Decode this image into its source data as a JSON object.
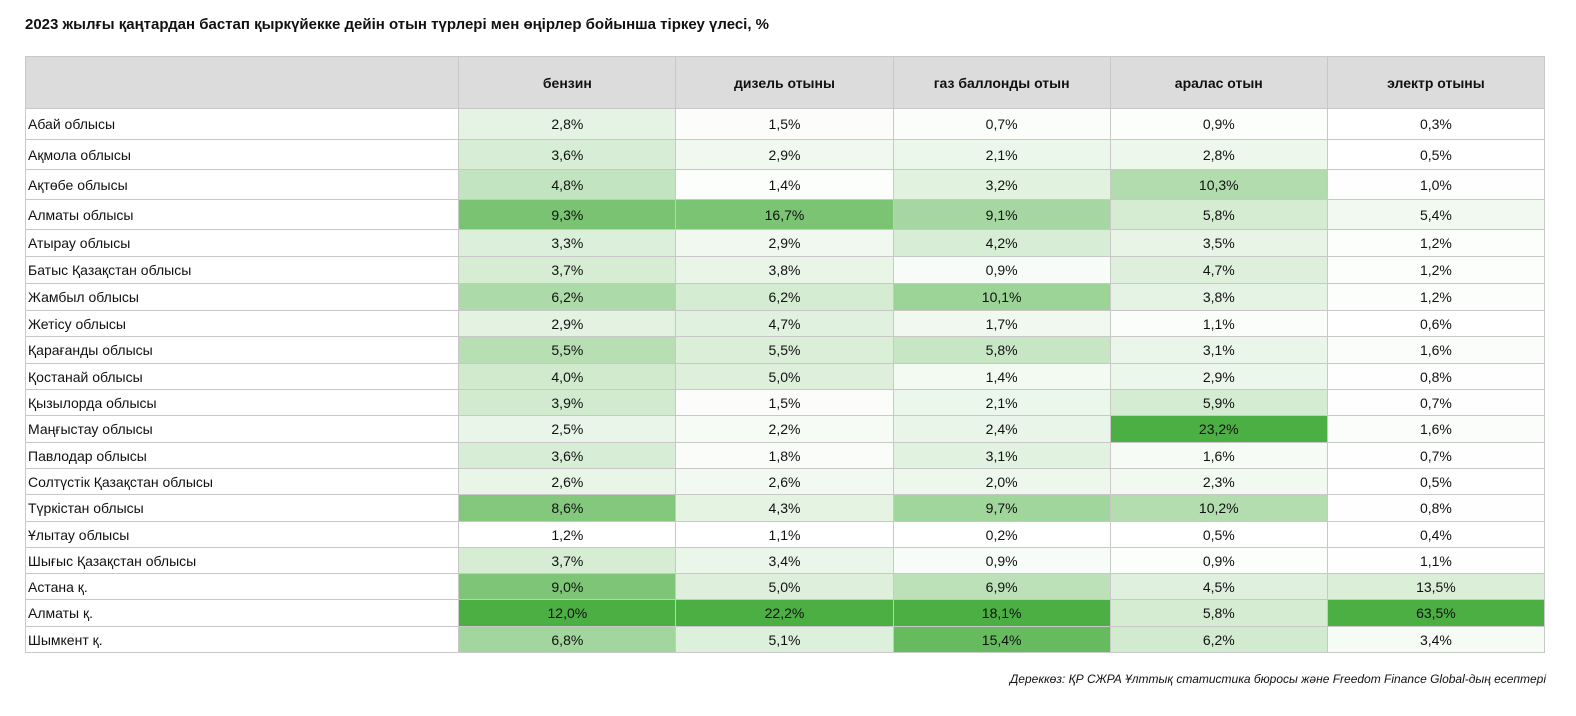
{
  "title": "2023 жылғы қаңтардан бастап қыркүйекке дейін отын түрлері мен өңірлер бойынша тіркеу үлесі, %",
  "source": "Дереккөз: ҚР СЖРА Ұлттық статистика бюросы және Freedom Finance Global-дың есептері",
  "colors": {
    "low": "#ffffff",
    "high": "#4caf43",
    "header": "#dcdcdc"
  },
  "chart_data": {
    "type": "heatmap",
    "title": "2023 жылғы қаңтардан бастап қыркүйекке дейін отын түрлері мен өңірлер бойынша тіркеу үлесі, %",
    "columns": [
      "бензин",
      "дизель отыны",
      "газ баллонды отын",
      "аралас отын",
      "электр отыны"
    ],
    "rows": [
      {
        "region": "Абай облысы",
        "cells": [
          "2,8%",
          "1,5%",
          "0,7%",
          "0,9%",
          "0,3%"
        ],
        "values": [
          2.8,
          1.5,
          0.7,
          0.9,
          0.3
        ]
      },
      {
        "region": "Ақмола облысы",
        "cells": [
          "3,6%",
          "2,9%",
          "2,1%",
          "2,8%",
          "0,5%"
        ],
        "values": [
          3.6,
          2.9,
          2.1,
          2.8,
          0.5
        ]
      },
      {
        "region": "Ақтөбе облысы",
        "cells": [
          "4,8%",
          "1,4%",
          "3,2%",
          "10,3%",
          "1,0%"
        ],
        "values": [
          4.8,
          1.4,
          3.2,
          10.3,
          1.0
        ]
      },
      {
        "region": "Алматы облысы",
        "cells": [
          "9,3%",
          "16,7%",
          "9,1%",
          "5,8%",
          "5,4%"
        ],
        "values": [
          9.3,
          16.7,
          9.1,
          5.8,
          5.4
        ]
      },
      {
        "region": "Атырау облысы",
        "cells": [
          "3,3%",
          "2,9%",
          "4,2%",
          "3,5%",
          "1,2%"
        ],
        "values": [
          3.3,
          2.9,
          4.2,
          3.5,
          1.2
        ]
      },
      {
        "region": "Батыс Қазақстан облысы",
        "cells": [
          "3,7%",
          "3,8%",
          "0,9%",
          "4,7%",
          "1,2%"
        ],
        "values": [
          3.7,
          3.8,
          0.9,
          4.7,
          1.2
        ]
      },
      {
        "region": "Жамбыл облысы",
        "cells": [
          "6,2%",
          "6,2%",
          "10,1%",
          "3,8%",
          "1,2%"
        ],
        "values": [
          6.2,
          6.2,
          10.1,
          3.8,
          1.2
        ]
      },
      {
        "region": "Жетісу облысы",
        "cells": [
          "2,9%",
          "4,7%",
          "1,7%",
          "1,1%",
          "0,6%"
        ],
        "values": [
          2.9,
          4.7,
          1.7,
          1.1,
          0.6
        ]
      },
      {
        "region": "Қарағанды облысы",
        "cells": [
          "5,5%",
          "5,5%",
          "5,8%",
          "3,1%",
          "1,6%"
        ],
        "values": [
          5.5,
          5.5,
          5.8,
          3.1,
          1.6
        ]
      },
      {
        "region": "Қостанай облысы",
        "cells": [
          "4,0%",
          "5,0%",
          "1,4%",
          "2,9%",
          "0,8%"
        ],
        "values": [
          4.0,
          5.0,
          1.4,
          2.9,
          0.8
        ]
      },
      {
        "region": "Қызылорда облысы",
        "cells": [
          "3,9%",
          "1,5%",
          "2,1%",
          "5,9%",
          "0,7%"
        ],
        "values": [
          3.9,
          1.5,
          2.1,
          5.9,
          0.7
        ]
      },
      {
        "region": "Маңғыстау облысы",
        "cells": [
          "2,5%",
          "2,2%",
          "2,4%",
          "23,2%",
          "1,6%"
        ],
        "values": [
          2.5,
          2.2,
          2.4,
          23.2,
          1.6
        ]
      },
      {
        "region": "Павлодар облысы",
        "cells": [
          "3,6%",
          "1,8%",
          "3,1%",
          "1,6%",
          "0,7%"
        ],
        "values": [
          3.6,
          1.8,
          3.1,
          1.6,
          0.7
        ]
      },
      {
        "region": "Солтүстік Қазақстан облысы",
        "cells": [
          "2,6%",
          "2,6%",
          "2,0%",
          "2,3%",
          "0,5%"
        ],
        "values": [
          2.6,
          2.6,
          2.0,
          2.3,
          0.5
        ]
      },
      {
        "region": "Түркістан облысы",
        "cells": [
          "8,6%",
          "4,3%",
          "9,7%",
          "10,2%",
          "0,8%"
        ],
        "values": [
          8.6,
          4.3,
          9.7,
          10.2,
          0.8
        ]
      },
      {
        "region": "Ұлытау облысы",
        "cells": [
          "1,2%",
          "1,1%",
          "0,2%",
          "0,5%",
          "0,4%"
        ],
        "values": [
          1.2,
          1.1,
          0.2,
          0.5,
          0.4
        ]
      },
      {
        "region": "Шығыс Қазақстан облысы",
        "cells": [
          "3,7%",
          "3,4%",
          "0,9%",
          "0,9%",
          "1,1%"
        ],
        "values": [
          3.7,
          3.4,
          0.9,
          0.9,
          1.1
        ]
      },
      {
        "region": "Астана қ.",
        "cells": [
          "9,0%",
          "5,0%",
          "6,9%",
          "4,5%",
          "13,5%"
        ],
        "values": [
          9.0,
          5.0,
          6.9,
          4.5,
          13.5
        ]
      },
      {
        "region": "Алматы қ.",
        "cells": [
          "12,0%",
          "22,2%",
          "18,1%",
          "5,8%",
          "63,5%"
        ],
        "values": [
          12.0,
          22.2,
          18.1,
          5.8,
          63.5
        ]
      },
      {
        "region": "Шымкент қ.",
        "cells": [
          "6,8%",
          "5,1%",
          "15,4%",
          "6,2%",
          "3,4%"
        ],
        "values": [
          6.8,
          5.1,
          15.4,
          6.2,
          3.4
        ]
      }
    ]
  }
}
